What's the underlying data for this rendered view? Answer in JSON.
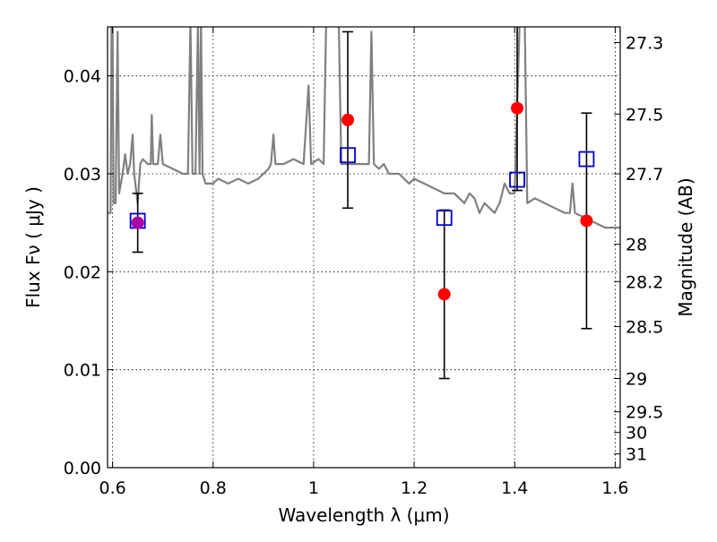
{
  "chart_data": {
    "type": "scatter",
    "xlabel": "Wavelength  λ (μm)",
    "ylabel_left": "Flux  Fν  ( μJy )",
    "ylabel_right": "Magnitude (AB)",
    "xlim": [
      0.59,
      1.61
    ],
    "ylim": [
      0.0,
      0.045
    ],
    "x_ticks": [
      0.6,
      0.8,
      1,
      1.2,
      1.4,
      1.6
    ],
    "x_tick_labels": [
      "0.6",
      "0.8",
      "1",
      "1.2",
      "1.4",
      "1.6"
    ],
    "y_ticks": [
      0.0,
      0.01,
      0.02,
      0.03,
      0.04
    ],
    "y_tick_labels": [
      "0.00",
      "0.01",
      "0.02",
      "0.03",
      "0.04"
    ],
    "right_ticks": [
      {
        "flux": 0.0434,
        "label": "27.3"
      },
      {
        "flux": 0.0361,
        "label": "27.5"
      },
      {
        "flux": 0.03,
        "label": "27.7"
      },
      {
        "flux": 0.0228,
        "label": "28"
      },
      {
        "flux": 0.019,
        "label": "28.2"
      },
      {
        "flux": 0.0144,
        "label": "28.5"
      },
      {
        "flux": 0.0091,
        "label": "29"
      },
      {
        "flux": 0.0057,
        "label": "29.5"
      },
      {
        "flux": 0.0036,
        "label": "30"
      },
      {
        "flux": 0.0014,
        "label": "31"
      }
    ],
    "grid": true,
    "series": [
      {
        "kind": "line",
        "color": "#808080",
        "points": [
          [
            0.59,
            0.026
          ],
          [
            0.596,
            0.026
          ],
          [
            0.598,
            0.0455
          ],
          [
            0.6,
            0.0455
          ],
          [
            0.602,
            0.027
          ],
          [
            0.606,
            0.027
          ],
          [
            0.61,
            0.0445
          ],
          [
            0.613,
            0.028
          ],
          [
            0.62,
            0.03
          ],
          [
            0.625,
            0.032
          ],
          [
            0.63,
            0.03
          ],
          [
            0.635,
            0.031
          ],
          [
            0.64,
            0.034
          ],
          [
            0.643,
            0.03
          ],
          [
            0.65,
            0.027
          ],
          [
            0.655,
            0.031
          ],
          [
            0.66,
            0.0315
          ],
          [
            0.67,
            0.031
          ],
          [
            0.676,
            0.031
          ],
          [
            0.678,
            0.036
          ],
          [
            0.681,
            0.031
          ],
          [
            0.69,
            0.031
          ],
          [
            0.695,
            0.034
          ],
          [
            0.7,
            0.031
          ],
          [
            0.72,
            0.0305
          ],
          [
            0.74,
            0.03
          ],
          [
            0.75,
            0.03
          ],
          [
            0.755,
            0.0455
          ],
          [
            0.759,
            0.03
          ],
          [
            0.765,
            0.03
          ],
          [
            0.77,
            0.0455
          ],
          [
            0.773,
            0.03
          ],
          [
            0.776,
            0.0455
          ],
          [
            0.779,
            0.03
          ],
          [
            0.785,
            0.029
          ],
          [
            0.8,
            0.029
          ],
          [
            0.81,
            0.0295
          ],
          [
            0.83,
            0.029
          ],
          [
            0.85,
            0.0295
          ],
          [
            0.87,
            0.029
          ],
          [
            0.89,
            0.0295
          ],
          [
            0.9,
            0.03
          ],
          [
            0.91,
            0.0305
          ],
          [
            0.915,
            0.031
          ],
          [
            0.92,
            0.034
          ],
          [
            0.924,
            0.031
          ],
          [
            0.94,
            0.031
          ],
          [
            0.96,
            0.0315
          ],
          [
            0.98,
            0.031
          ],
          [
            0.99,
            0.039
          ],
          [
            0.995,
            0.031
          ],
          [
            1.01,
            0.0315
          ],
          [
            1.02,
            0.031
          ],
          [
            1.025,
            0.0455
          ],
          [
            1.03,
            0.0455
          ],
          [
            1.04,
            0.0455
          ],
          [
            1.05,
            0.0455
          ],
          [
            1.055,
            0.031
          ],
          [
            1.07,
            0.031
          ],
          [
            1.09,
            0.031
          ],
          [
            1.11,
            0.031
          ],
          [
            1.115,
            0.0445
          ],
          [
            1.12,
            0.031
          ],
          [
            1.13,
            0.0305
          ],
          [
            1.14,
            0.031
          ],
          [
            1.15,
            0.03
          ],
          [
            1.17,
            0.03
          ],
          [
            1.19,
            0.029
          ],
          [
            1.2,
            0.0295
          ],
          [
            1.22,
            0.029
          ],
          [
            1.24,
            0.0285
          ],
          [
            1.26,
            0.028
          ],
          [
            1.28,
            0.028
          ],
          [
            1.3,
            0.027
          ],
          [
            1.31,
            0.028
          ],
          [
            1.32,
            0.0275
          ],
          [
            1.33,
            0.026
          ],
          [
            1.34,
            0.027
          ],
          [
            1.36,
            0.026
          ],
          [
            1.37,
            0.027
          ],
          [
            1.38,
            0.029
          ],
          [
            1.39,
            0.028
          ],
          [
            1.4,
            0.028
          ],
          [
            1.41,
            0.0455
          ],
          [
            1.42,
            0.0455
          ],
          [
            1.425,
            0.027
          ],
          [
            1.44,
            0.0275
          ],
          [
            1.46,
            0.027
          ],
          [
            1.48,
            0.0265
          ],
          [
            1.5,
            0.026
          ],
          [
            1.51,
            0.026
          ],
          [
            1.515,
            0.029
          ],
          [
            1.52,
            0.026
          ],
          [
            1.54,
            0.0255
          ],
          [
            1.56,
            0.025
          ],
          [
            1.58,
            0.0245
          ],
          [
            1.6,
            0.0245
          ],
          [
            1.61,
            0.0245
          ]
        ]
      },
      {
        "kind": "errorbar_points",
        "color": "#ff0000",
        "points": [
          {
            "x": 0.65,
            "y": 0.025,
            "err": 0.003
          },
          {
            "x": 1.068,
            "y": 0.0355,
            "err": 0.009
          },
          {
            "x": 1.26,
            "y": 0.0177,
            "err": 0.0086
          },
          {
            "x": 1.405,
            "y": 0.0367,
            "err": 0.0084
          },
          {
            "x": 1.543,
            "y": 0.0252,
            "err": 0.011
          }
        ]
      },
      {
        "kind": "open_squares",
        "color": "#0000cc",
        "points": [
          {
            "x": 0.65,
            "y": 0.0252
          },
          {
            "x": 1.068,
            "y": 0.0319
          },
          {
            "x": 1.26,
            "y": 0.0255
          },
          {
            "x": 1.405,
            "y": 0.0294
          },
          {
            "x": 1.543,
            "y": 0.0315
          }
        ]
      }
    ],
    "overlap_marker_color": "#aa00aa"
  }
}
